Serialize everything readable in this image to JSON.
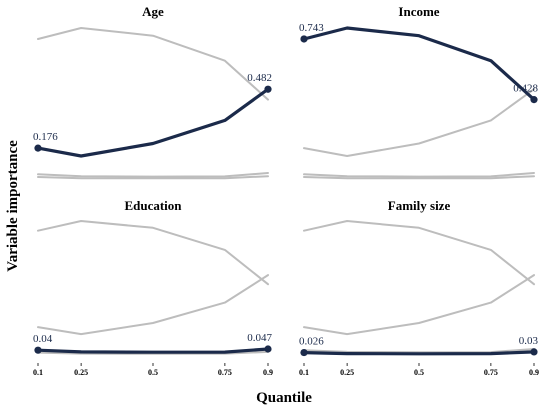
{
  "colors": {
    "highlight": "#1b2a4a",
    "background_series": "#bdbdbd",
    "data_label": "#1b2a4a"
  },
  "chart_data": {
    "type": "line",
    "xlabel": "Quantile",
    "ylabel": "Variable importance",
    "x": [
      0.1,
      0.25,
      0.5,
      0.75,
      0.9
    ],
    "x_tick_labels": [
      "0.1",
      "0.25",
      "0.5",
      "0.75",
      "0.9"
    ],
    "ylim": [
      0,
      0.8
    ],
    "grid": false,
    "panels": [
      {
        "title": "Age",
        "highlight": 0,
        "start_label": "0.176",
        "end_label": "0.482"
      },
      {
        "title": "Income",
        "highlight": 1,
        "start_label": "0.743",
        "end_label": "0.428"
      },
      {
        "title": "Education",
        "highlight": 2,
        "start_label": "0.04",
        "end_label": "0.047"
      },
      {
        "title": "Family size",
        "highlight": 3,
        "start_label": "0.026",
        "end_label": "0.03"
      }
    ],
    "series": [
      {
        "values": [
          0.176,
          0.135,
          0.2,
          0.32,
          0.482
        ]
      },
      {
        "values": [
          0.743,
          0.8,
          0.76,
          0.63,
          0.428
        ]
      },
      {
        "values": [
          0.04,
          0.03,
          0.028,
          0.029,
          0.047
        ]
      },
      {
        "values": [
          0.026,
          0.02,
          0.019,
          0.02,
          0.03
        ]
      }
    ]
  }
}
